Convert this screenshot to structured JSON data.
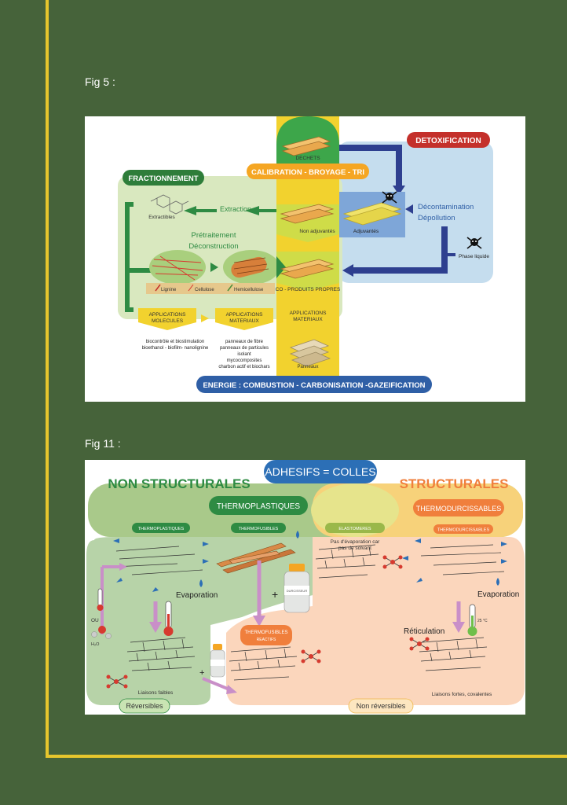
{
  "page": {
    "fig5_label": "Fig 5 :",
    "fig11_label": "Fig 11 :"
  },
  "fig5": {
    "dechets": "DECHETS",
    "detoxification": "DETOXIFICATION",
    "fractionnement": "FRACTIONNEMENT",
    "calibration": "CALIBRATION - BROYAGE - TRI",
    "extractibles": "Extractibles",
    "extraction": "Extraction",
    "pretraitement": "Prétraitement",
    "deconstruction": "Déconstruction",
    "non_adjuvantes": "Non adjuvantés",
    "adjuvantes": "Adjuvantés",
    "decontamination": "Décontamination",
    "depollution": "Dépollution",
    "phase_liquide": "Phase liquide",
    "lignine": "Lignine",
    "cellulose": "Cellulose",
    "hemicellulose": "Hemicellulose",
    "co_produits": "CO - PRODUITS PROPRES",
    "app_molecules_1": "APPLICATIONS",
    "app_molecules_2": "MOLECULES",
    "app_materiaux_1": "APPLICATIONS",
    "app_materiaux_2": "MATERIAUX",
    "app_materiaux_b_1": "APPLICATIONS",
    "app_materiaux_b_2": "MATERIAUX",
    "molecules_list": [
      "biocontrôle et biostimulation",
      "bioethanol - biofilm- nanolignine"
    ],
    "materiaux_list": [
      "panneaux de fibre",
      "panneaux de particules",
      "isolant",
      "mycocomposites",
      "charbon actif et biochars"
    ],
    "panneaux": "Panneaux",
    "energie": "ENERGIE : COMBUSTION - CARBONISATION -GAZEIFICATION",
    "colors": {
      "green": "#2e8b43",
      "yellow": "#f2d22e",
      "blue": "#2f5fa6",
      "red": "#c4302b",
      "light_blue": "#c5ddee",
      "light_green": "#d9e8bf"
    }
  },
  "fig11": {
    "adhesifs": "ADHESIFS = COLLES",
    "non_structurales": "NON STRUCTURALES",
    "structurales": "STRUCTURALES",
    "thermoplastiques_main": "THERMOPLASTIQUES",
    "thermodurcissables_main": "THERMODURCISSABLES",
    "thermoplastiques_small": "THERMOPLASTIQUES",
    "thermofusibles_small": "THERMOFUSIBLES",
    "elastomeres_small": "ELASTOMERES",
    "thermodurcissables_small": "THERMODURCISSABLES",
    "pas_evaporation_1": "Pas d'évaporation car",
    "pas_evaporation_2": "pas de solvant",
    "evaporation_left": "Evaporation",
    "evaporation_right": "Evaporation",
    "reticulation": "Réticulation",
    "ou": "OU",
    "h2o": "H₂O",
    "liaisons_faibles": "Liaisons faibles",
    "liaisons_fortes": "Liaisons fortes, covalentes",
    "thermofusibles_reactifs_1": "THERMOFUSIBLES",
    "thermofusibles_reactifs_2": "REACTIFS",
    "durcisseur": "DURCISSEUR",
    "reversibles": "Réversibles",
    "non_reversibles": "Non réversibles",
    "temp": "25 °C",
    "colors": {
      "green": "#2e8b43",
      "orange": "#f07f3c",
      "blue": "#2c6fb6",
      "sage": "#b7d3a8",
      "peach": "#fbd6bc",
      "pink": "#c98fc8"
    }
  }
}
